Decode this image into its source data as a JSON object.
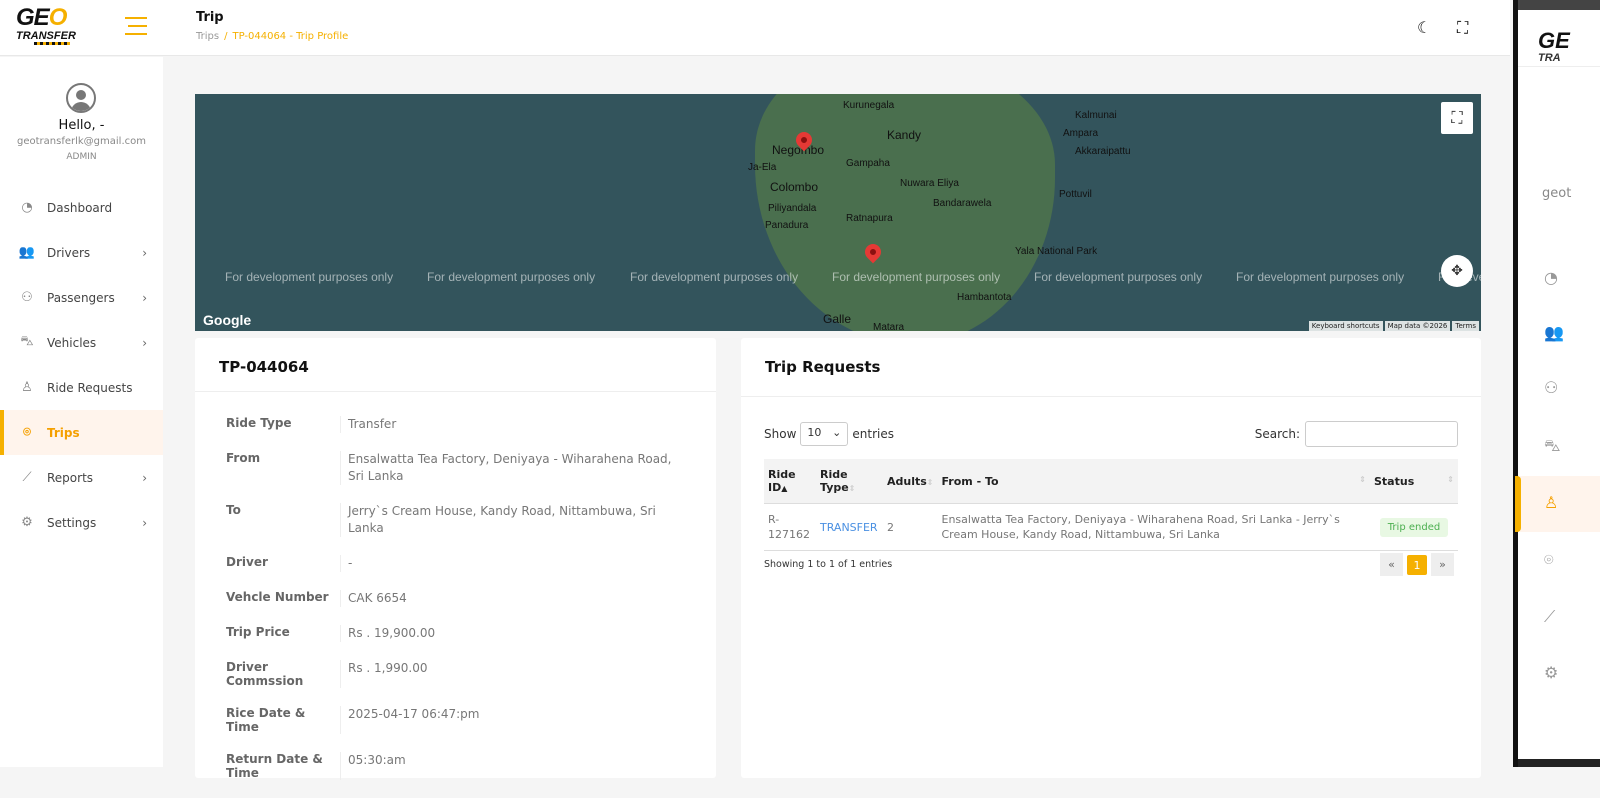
{
  "brand": {
    "logo_text": "GEO TRANSFER",
    "accent": "#f5b000"
  },
  "header": {
    "title": "Trip",
    "breadcrumb": [
      "Trips",
      "TP-044064 - Trip Profile"
    ]
  },
  "user": {
    "greeting": "Hello, -",
    "email": "geotransferlk@gmail.com",
    "role": "ADMIN"
  },
  "sidebar": {
    "items": [
      {
        "label": "Dashboard",
        "icon": "speedometer-icon",
        "chevron": false
      },
      {
        "label": "Drivers",
        "icon": "users-icon",
        "chevron": true
      },
      {
        "label": "Passengers",
        "icon": "user-group-icon",
        "chevron": true
      },
      {
        "label": "Vehicles",
        "icon": "car-icon",
        "chevron": true
      },
      {
        "label": "Ride Requests",
        "icon": "user-pin-icon",
        "chevron": false
      },
      {
        "label": "Trips",
        "icon": "location-pin-icon",
        "chevron": false,
        "active": true
      },
      {
        "label": "Reports",
        "icon": "chart-icon",
        "chevron": true
      },
      {
        "label": "Settings",
        "icon": "gear-icon",
        "chevron": true
      }
    ]
  },
  "map": {
    "cities": [
      "Kurunegala",
      "Kandy",
      "Negombo",
      "Gampaha",
      "Ja-Ela",
      "Colombo",
      "Piliyandala",
      "Panadura",
      "Ratnapura",
      "Nuwara Eliya",
      "Bandarawela",
      "Ampara",
      "Akkaraipattu",
      "Kalmunai",
      "Pottuvil",
      "Yala National Park",
      "Hambantota",
      "Galle",
      "Matara"
    ],
    "watermark": "For development purposes only",
    "google": "Google",
    "attribution": [
      "Keyboard shortcuts",
      "Map data ©2026",
      "Terms"
    ]
  },
  "trip": {
    "id": "TP-044064",
    "fields": [
      {
        "label": "Ride Type",
        "value": "Transfer"
      },
      {
        "label": "From",
        "value": "Ensalwatta Tea Factory, Deniyaya - Wiharahena Road, Sri Lanka"
      },
      {
        "label": "To",
        "value": "Jerry`s Cream House, Kandy Road, Nittambuwa, Sri Lanka"
      },
      {
        "label": "Driver",
        "value": "-"
      },
      {
        "label": "Vehcle Number",
        "value": "CAK 6654"
      },
      {
        "label": "Trip Price",
        "value": "Rs . 19,900.00"
      },
      {
        "label": "Driver Commssion",
        "value": "Rs . 1,990.00"
      },
      {
        "label": "Rice Date & Time",
        "value": "2025-04-17 06:47:pm"
      },
      {
        "label": "Return Date & Time",
        "value": "05:30:am"
      }
    ]
  },
  "requests": {
    "title": "Trip Requests",
    "show": "Show",
    "entries_value": "10",
    "entries": "entries",
    "search_label": "Search:",
    "columns": [
      "Ride ID",
      "Ride Type",
      "Adults",
      "From - To",
      "Status"
    ],
    "rows": [
      {
        "id": "R-127162",
        "type": "TRANSFER",
        "adults": "2",
        "route": "Ensalwatta Tea Factory, Deniyaya - Wiharahena Road, Sri Lanka - Jerry`s Cream House, Kandy Road, Nittambuwa, Sri Lanka",
        "status": "Trip ended"
      }
    ],
    "info": "Showing 1 to 1 of 1 entries",
    "pages": [
      "«",
      "1",
      "»"
    ]
  },
  "overlay": {
    "email_fragment": "geot",
    "logo_text": "GE TRA"
  }
}
